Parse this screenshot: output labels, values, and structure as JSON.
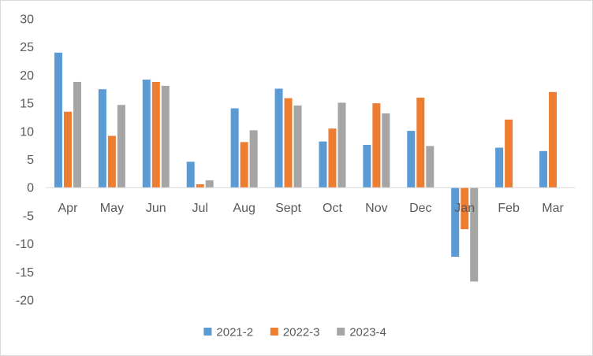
{
  "chart_data": {
    "type": "bar",
    "title": "",
    "xlabel": "",
    "ylabel": "",
    "categories": [
      "Apr",
      "May",
      "Jun",
      "Jul",
      "Aug",
      "Sept",
      "Oct",
      "Nov",
      "Dec",
      "Jan",
      "Feb",
      "Mar"
    ],
    "series": [
      {
        "name": "2021-2",
        "color": "#5b9bd5",
        "values": [
          24.0,
          17.5,
          19.2,
          4.6,
          14.1,
          17.6,
          8.2,
          7.6,
          10.1,
          -12.3,
          7.1,
          6.5
        ]
      },
      {
        "name": "2022-3",
        "color": "#ed7d31",
        "values": [
          13.5,
          9.2,
          18.8,
          0.6,
          8.1,
          15.9,
          10.5,
          15.0,
          16.0,
          -7.4,
          12.1,
          17.0
        ]
      },
      {
        "name": "2023-4",
        "color": "#a5a5a5",
        "values": [
          18.8,
          14.7,
          18.1,
          1.3,
          10.2,
          14.6,
          15.1,
          13.2,
          7.4,
          -16.7,
          null,
          null
        ]
      }
    ],
    "ylim": [
      -20,
      30
    ],
    "yticks": [
      30,
      25,
      20,
      15,
      10,
      5,
      0,
      -5,
      -10,
      -15,
      -20
    ],
    "grid": false,
    "legend_position": "bottom"
  }
}
